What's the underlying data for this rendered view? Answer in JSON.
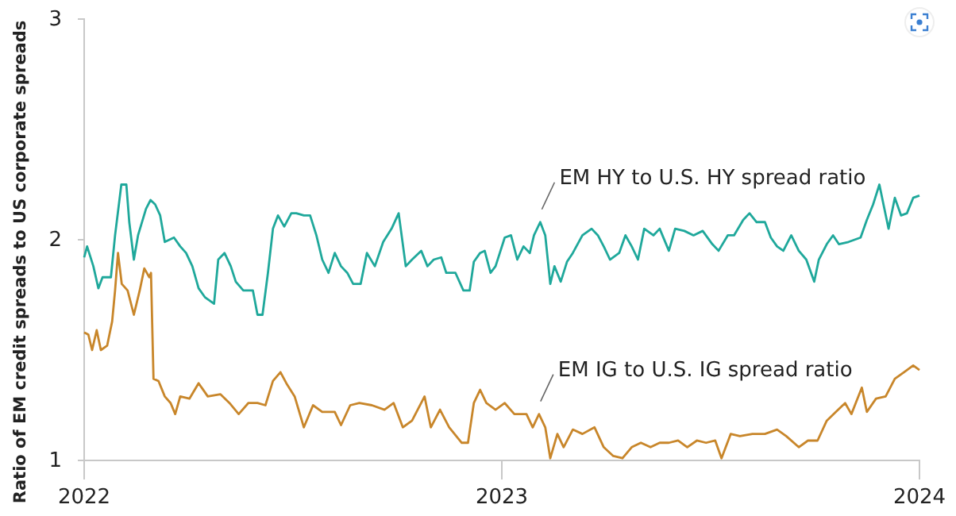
{
  "chart_data": {
    "type": "line",
    "ylabel": "Ratio of EM credit spreads to US corporate spreads",
    "xlim": [
      2022,
      2024
    ],
    "xticks": [
      2022,
      2023,
      2024
    ],
    "ylim": [
      1,
      3
    ],
    "yticks": [
      1,
      2,
      3
    ],
    "grid": false,
    "marker": "none",
    "line_style": "solid",
    "annotations": [
      {
        "text": "EM HY to U.S. HY spread ratio",
        "x": 2023.092,
        "y": 2.08
      },
      {
        "text": "EM IG to U.S. IG spread ratio",
        "x": 2023.089,
        "y": 1.21
      }
    ],
    "series": [
      {
        "color": "#1fa89b",
        "x": [
          2022.0,
          2022.007,
          2022.022,
          2022.034,
          2022.044,
          2022.064,
          2022.074,
          2022.089,
          2022.101,
          2022.108,
          2022.119,
          2022.129,
          2022.148,
          2022.159,
          2022.17,
          2022.182,
          2022.193,
          2022.215,
          2022.23,
          2022.244,
          2022.259,
          2022.274,
          2022.289,
          2022.311,
          2022.321,
          2022.336,
          2022.351,
          2022.363,
          2022.381,
          2022.393,
          2022.404,
          2022.415,
          2022.427,
          2022.44,
          2022.452,
          2022.464,
          2022.479,
          2022.496,
          2022.508,
          2022.526,
          2022.541,
          2022.556,
          2022.57,
          2022.585,
          2022.6,
          2022.615,
          2022.63,
          2022.644,
          2022.662,
          2022.677,
          2022.696,
          2022.716,
          2022.736,
          2022.753,
          2022.77,
          2022.785,
          2022.807,
          2022.822,
          2022.837,
          2022.855,
          2022.867,
          2022.889,
          2022.908,
          2022.923,
          2022.933,
          2022.948,
          2022.959,
          2022.973,
          2022.985,
          2023.007,
          2023.022,
          2023.037,
          2023.052,
          2023.067,
          2023.077,
          2023.092,
          2023.104,
          2023.116,
          2023.126,
          2023.141,
          2023.156,
          2023.17,
          2023.193,
          2023.215,
          2023.23,
          2023.244,
          2023.259,
          2023.281,
          2023.296,
          2023.311,
          2023.326,
          2023.341,
          2023.363,
          2023.378,
          2023.4,
          2023.415,
          2023.437,
          2023.459,
          2023.481,
          2023.504,
          2023.519,
          2023.541,
          2023.556,
          2023.578,
          2023.593,
          2023.61,
          2023.63,
          2023.644,
          2023.659,
          2023.674,
          2023.693,
          2023.711,
          2023.729,
          2023.748,
          2023.759,
          2023.778,
          2023.793,
          2023.807,
          2023.83,
          2023.859,
          2023.874,
          2023.889,
          2023.904,
          2023.916,
          2023.926,
          2023.941,
          2023.956,
          2023.97,
          2023.985,
          2024.0
        ],
        "values": [
          1.92,
          1.97,
          1.88,
          1.78,
          1.83,
          1.83,
          2.02,
          2.25,
          2.25,
          2.08,
          1.91,
          2.02,
          2.14,
          2.18,
          2.16,
          2.11,
          1.99,
          2.01,
          1.97,
          1.94,
          1.88,
          1.78,
          1.74,
          1.71,
          1.91,
          1.94,
          1.88,
          1.81,
          1.77,
          1.77,
          1.77,
          1.66,
          1.66,
          1.85,
          2.05,
          2.11,
          2.06,
          2.12,
          2.12,
          2.11,
          2.11,
          2.02,
          1.91,
          1.85,
          1.94,
          1.88,
          1.85,
          1.8,
          1.8,
          1.94,
          1.88,
          1.99,
          2.05,
          2.12,
          1.88,
          1.91,
          1.95,
          1.88,
          1.91,
          1.92,
          1.85,
          1.85,
          1.77,
          1.77,
          1.9,
          1.94,
          1.95,
          1.85,
          1.88,
          2.01,
          2.02,
          1.91,
          1.97,
          1.94,
          2.02,
          2.08,
          2.02,
          1.8,
          1.88,
          1.81,
          1.9,
          1.94,
          2.02,
          2.05,
          2.02,
          1.97,
          1.91,
          1.94,
          2.02,
          1.97,
          1.91,
          2.05,
          2.02,
          2.05,
          1.95,
          2.05,
          2.04,
          2.02,
          2.04,
          1.98,
          1.95,
          2.02,
          2.02,
          2.09,
          2.12,
          2.08,
          2.08,
          2.01,
          1.97,
          1.95,
          2.02,
          1.95,
          1.91,
          1.81,
          1.91,
          1.98,
          2.02,
          1.98,
          1.99,
          2.01,
          2.09,
          2.16,
          2.25,
          2.14,
          2.05,
          2.19,
          2.11,
          2.12,
          2.19,
          2.2
        ]
      },
      {
        "color": "#c8862a",
        "x": [
          2022.0,
          2022.01,
          2022.019,
          2022.03,
          2022.04,
          2022.055,
          2022.067,
          2022.074,
          2022.081,
          2022.09,
          2022.104,
          2022.119,
          2022.133,
          2022.144,
          2022.156,
          2022.16,
          2022.166,
          2022.178,
          2022.193,
          2022.207,
          2022.218,
          2022.23,
          2022.252,
          2022.274,
          2022.296,
          2022.326,
          2022.348,
          2022.37,
          2022.393,
          2022.415,
          2022.434,
          2022.452,
          2022.47,
          2022.484,
          2022.504,
          2022.526,
          2022.548,
          2022.57,
          2022.6,
          2022.615,
          2022.637,
          2022.659,
          2022.689,
          2022.719,
          2022.741,
          2022.763,
          2022.785,
          2022.815,
          2022.83,
          2022.852,
          2022.874,
          2022.904,
          2022.919,
          2022.933,
          2022.948,
          2022.963,
          2022.985,
          2023.007,
          2023.03,
          2023.059,
          2023.074,
          2023.089,
          2023.104,
          2023.116,
          2023.133,
          2023.148,
          2023.17,
          2023.193,
          2023.222,
          2023.244,
          2023.267,
          2023.289,
          2023.311,
          2023.333,
          2023.356,
          2023.378,
          2023.4,
          2023.422,
          2023.444,
          2023.467,
          2023.489,
          2023.511,
          2023.526,
          2023.548,
          2023.57,
          2023.6,
          2023.63,
          2023.659,
          2023.681,
          2023.711,
          2023.733,
          2023.756,
          2023.778,
          2023.8,
          2023.822,
          2023.837,
          2023.862,
          2023.874,
          2023.896,
          2023.919,
          2023.941,
          2023.963,
          2023.985,
          2024.0
        ],
        "values": [
          1.58,
          1.57,
          1.5,
          1.59,
          1.5,
          1.52,
          1.63,
          1.77,
          1.94,
          1.8,
          1.77,
          1.66,
          1.77,
          1.87,
          1.83,
          1.85,
          1.37,
          1.36,
          1.29,
          1.26,
          1.21,
          1.29,
          1.28,
          1.35,
          1.29,
          1.3,
          1.26,
          1.21,
          1.26,
          1.26,
          1.25,
          1.36,
          1.4,
          1.35,
          1.29,
          1.15,
          1.25,
          1.22,
          1.22,
          1.16,
          1.25,
          1.26,
          1.25,
          1.23,
          1.26,
          1.15,
          1.18,
          1.29,
          1.15,
          1.23,
          1.15,
          1.08,
          1.08,
          1.26,
          1.32,
          1.26,
          1.23,
          1.26,
          1.21,
          1.21,
          1.15,
          1.21,
          1.15,
          1.01,
          1.12,
          1.06,
          1.14,
          1.12,
          1.15,
          1.06,
          1.02,
          1.01,
          1.06,
          1.08,
          1.06,
          1.08,
          1.08,
          1.09,
          1.06,
          1.09,
          1.08,
          1.09,
          1.01,
          1.12,
          1.11,
          1.12,
          1.12,
          1.14,
          1.11,
          1.06,
          1.09,
          1.09,
          1.18,
          1.22,
          1.26,
          1.21,
          1.33,
          1.22,
          1.28,
          1.29,
          1.37,
          1.4,
          1.43,
          1.41
        ]
      }
    ]
  }
}
